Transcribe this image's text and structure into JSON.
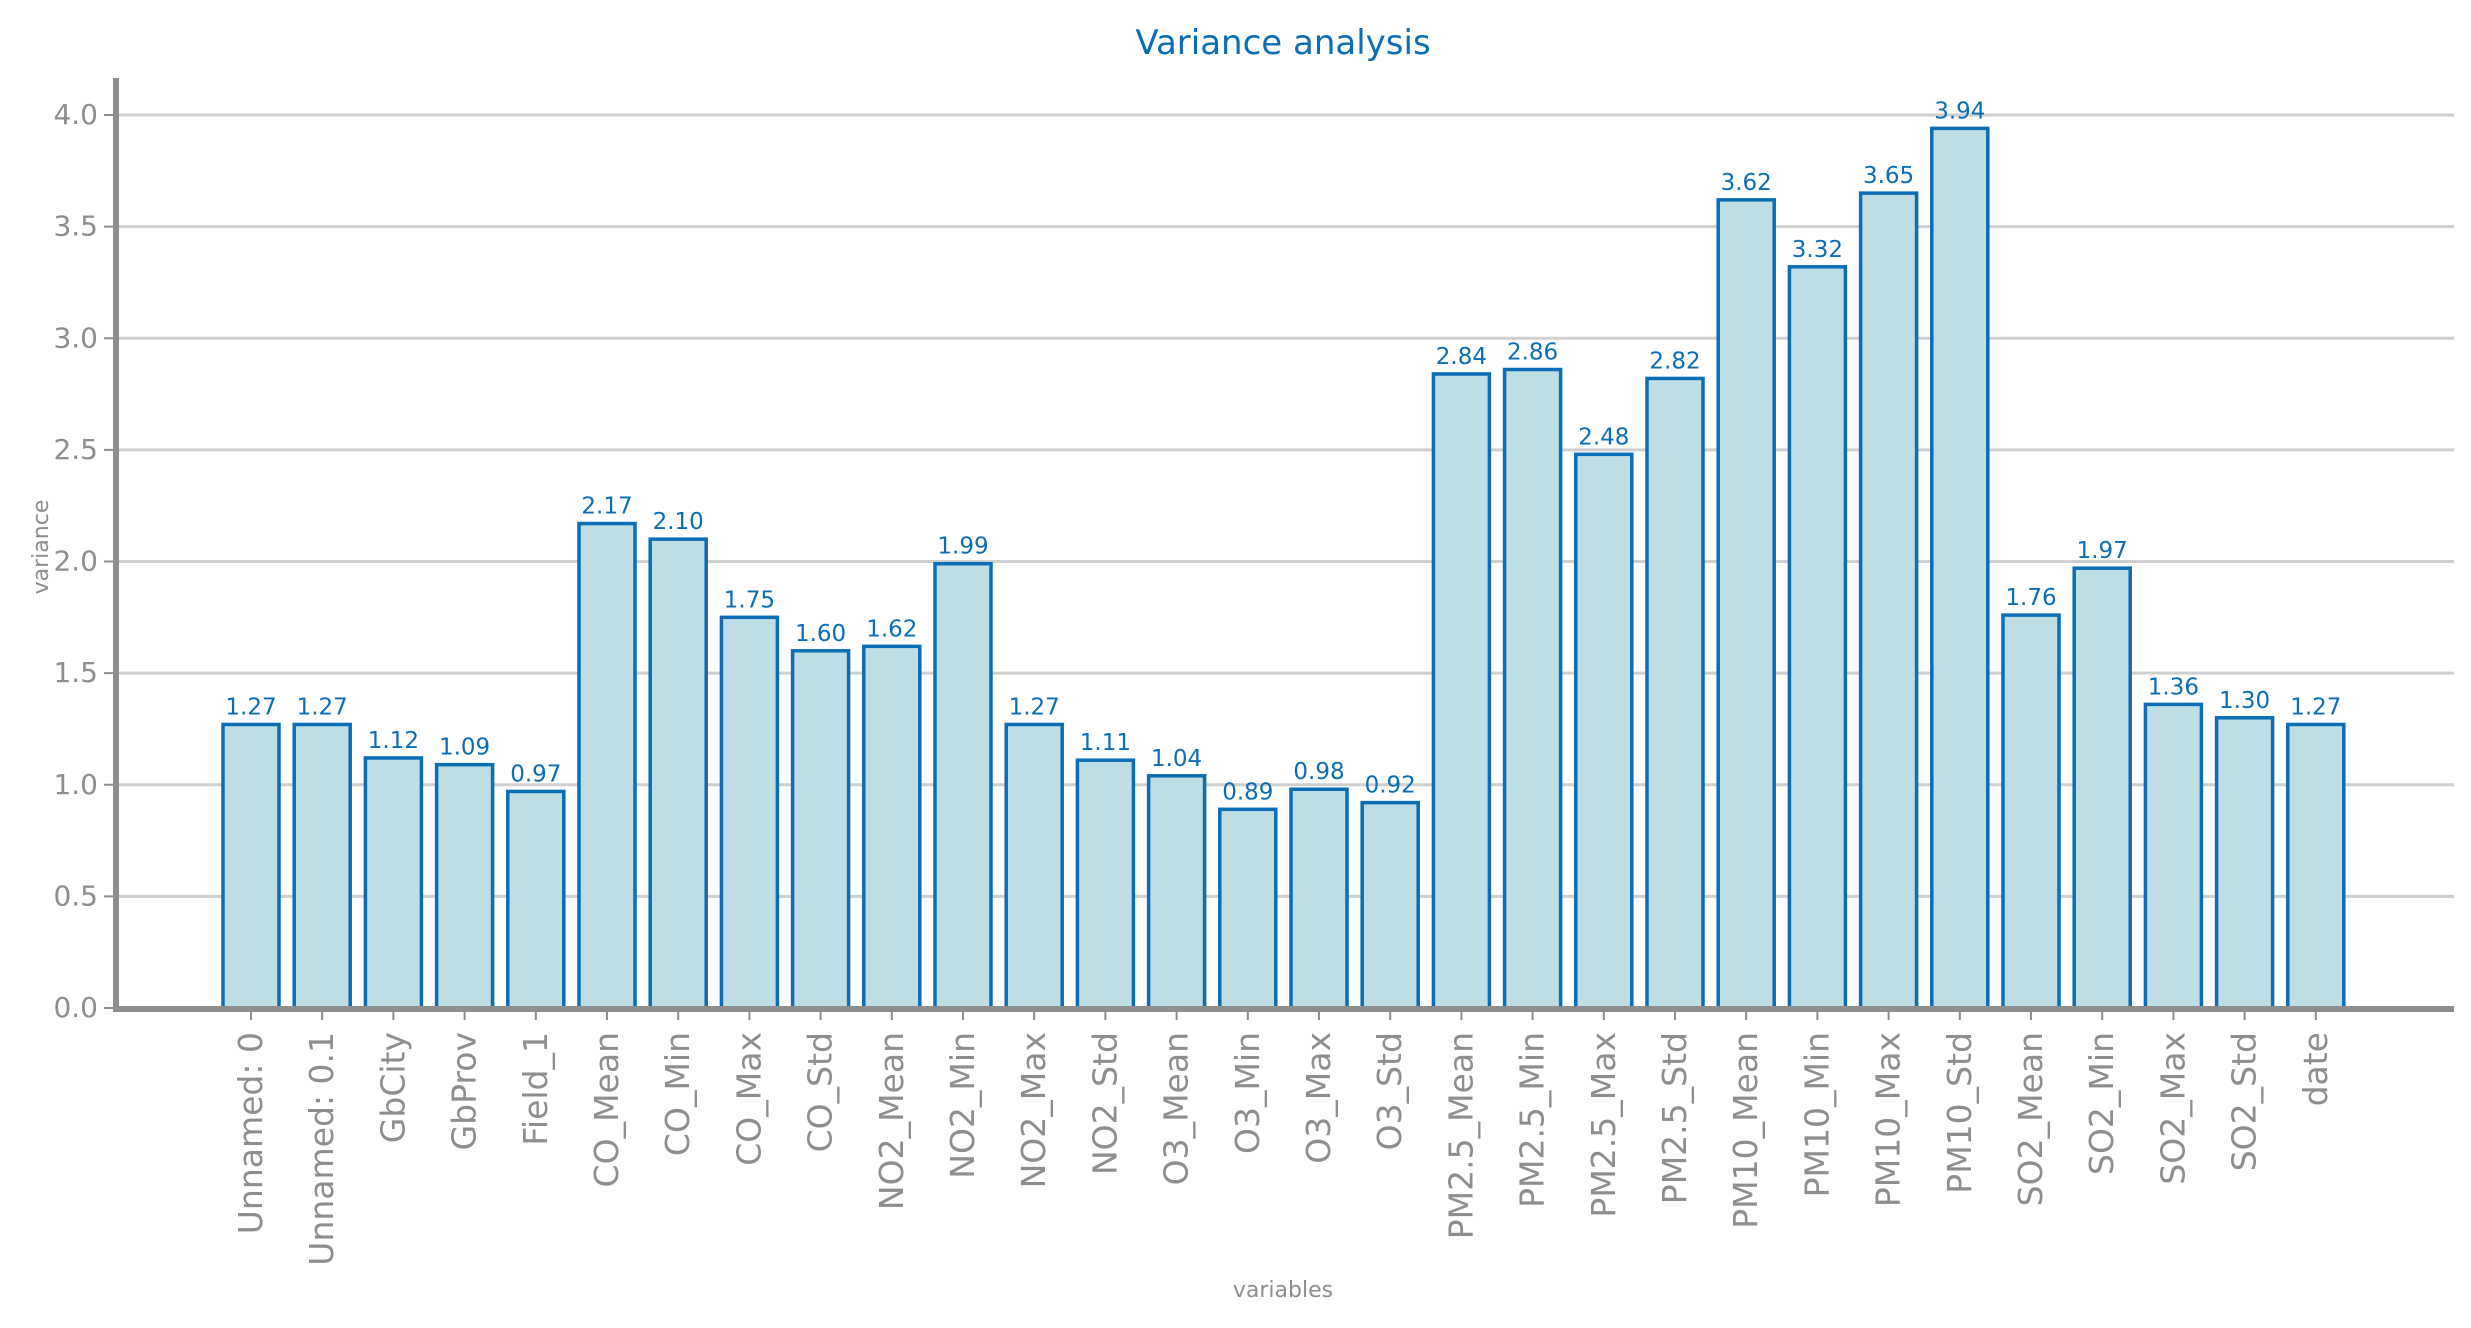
{
  "chart_data": {
    "type": "bar",
    "title": "Variance analysis",
    "xlabel": "variables",
    "ylabel": "variance",
    "ylim": [
      0,
      4.15
    ],
    "yticks": [
      "0.0",
      "0.5",
      "1.0",
      "1.5",
      "2.0",
      "2.5",
      "3.0",
      "3.5",
      "4.0"
    ],
    "grid": "horizontal",
    "categories": [
      "Unnamed: 0",
      "Unnamed: 0.1",
      "GbCity",
      "GbProv",
      "Field_1",
      "CO_Mean",
      "CO_Min",
      "CO_Max",
      "CO_Std",
      "NO2_Mean",
      "NO2_Min",
      "NO2_Max",
      "NO2_Std",
      "O3_Mean",
      "O3_Min",
      "O3_Max",
      "O3_Std",
      "PM2.5_Mean",
      "PM2.5_Min",
      "PM2.5_Max",
      "PM2.5_Std",
      "PM10_Mean",
      "PM10_Min",
      "PM10_Max",
      "PM10_Std",
      "SO2_Mean",
      "SO2_Min",
      "SO2_Max",
      "SO2_Std",
      "date"
    ],
    "values": [
      1.27,
      1.27,
      1.12,
      1.09,
      0.97,
      2.17,
      2.1,
      1.75,
      1.6,
      1.62,
      1.99,
      1.27,
      1.11,
      1.04,
      0.89,
      0.98,
      0.92,
      2.84,
      2.86,
      2.48,
      2.82,
      3.62,
      3.32,
      3.65,
      3.94,
      1.76,
      1.97,
      1.36,
      1.3,
      1.27
    ],
    "value_labels": [
      "1.27",
      "1.27",
      "1.12",
      "1.09",
      "0.97",
      "2.17",
      "2.10",
      "1.75",
      "1.60",
      "1.62",
      "1.99",
      "1.27",
      "1.11",
      "1.04",
      "0.89",
      "0.98",
      "0.92",
      "2.84",
      "2.86",
      "2.48",
      "2.82",
      "3.62",
      "3.32",
      "3.65",
      "3.94",
      "1.76",
      "1.97",
      "1.36",
      "1.30",
      "1.27"
    ],
    "colors": {
      "bar_fill": "#bfdee3",
      "bar_edge": "#0a6db5",
      "title": "#0a6db5",
      "value_label": "#0a6db5",
      "tick_label": "#8e8e8e",
      "axis_label": "#8e8e8e",
      "grid": "#cfcfcf",
      "axis": "#8e8e8e"
    }
  }
}
